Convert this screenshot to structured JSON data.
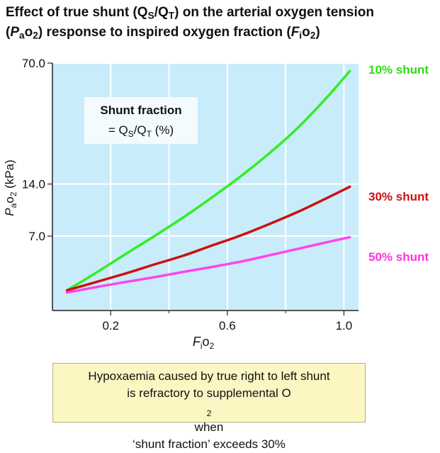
{
  "title": {
    "line1_a": "Effect of true shunt (Q",
    "line1_sub1": "S",
    "line1_b": "/Q",
    "line1_sub2": "T",
    "line1_c": ") on the arterial oxygen tension",
    "line2_a": "(",
    "line2_P": "P",
    "line2_sub_a": "a",
    "line2_b": "o",
    "line2_sub_2": "2",
    "line2_c": ") response to inspired oxygen fraction (",
    "line2_F": "F",
    "line2_sub_i": "i",
    "line2_d": "o",
    "line2_sub_2b": "2",
    "line2_e": ")"
  },
  "legend_box": {
    "heading": "Shunt fraction",
    "eq": "= Q",
    "sub1": "S",
    "slash": "/Q",
    "sub2": "T",
    "unit": " (%)"
  },
  "callout": {
    "line1": "Hypoxaemia caused by true right to left shunt",
    "line2_a": "is refractory to supplemental O",
    "line2_sub": "2",
    "line2_b": " when",
    "line3": "‘shunt fraction’ exceeds 30%"
  },
  "colors": {
    "plot_bg": "#c9ecfa",
    "grid": "#ffffff",
    "shunt10": "#33ee22",
    "shunt30": "#cc1111",
    "shunt50": "#ff44ee",
    "label10": "#2fdc16",
    "label30": "#cc1111",
    "label50": "#ff33dd"
  },
  "chart_data": {
    "type": "line",
    "title": "Effect of true shunt (QS/QT) on the arterial oxygen tension (PaO2) response to inspired oxygen fraction (FiO2)",
    "xlabel": "FiO2",
    "ylabel": "PaO2 (kPa)",
    "xlim": [
      0,
      1.05
    ],
    "x_ticks": [
      0.2,
      0.6,
      1.0
    ],
    "x_tick_labels": [
      "0.2",
      "0.6",
      "1.0"
    ],
    "y_ticks": [
      7.0,
      14.0,
      70.0
    ],
    "y_tick_labels": [
      "7.0",
      "14.0",
      "70.0"
    ],
    "y_scale": "log",
    "ylim": [
      2.6,
      70.0
    ],
    "grid": true,
    "legend": "right",
    "series": [
      {
        "name": "10% shunt",
        "x": [
          0.05,
          0.15,
          0.25,
          0.35,
          0.45,
          0.55,
          0.65,
          0.75,
          0.85,
          0.95,
          1.02
        ],
        "y": [
          3.4,
          4.3,
          5.5,
          7.0,
          9.0,
          11.8,
          15.7,
          21.5,
          30.5,
          46.0,
          63.0
        ]
      },
      {
        "name": "30% shunt",
        "x": [
          0.05,
          0.15,
          0.25,
          0.35,
          0.45,
          0.55,
          0.65,
          0.75,
          0.85,
          0.95,
          1.02
        ],
        "y": [
          3.4,
          3.8,
          4.25,
          4.8,
          5.4,
          6.2,
          7.1,
          8.3,
          9.8,
          11.8,
          13.5
        ]
      },
      {
        "name": "50% shunt",
        "x": [
          0.05,
          0.15,
          0.25,
          0.35,
          0.45,
          0.55,
          0.65,
          0.75,
          0.85,
          0.95,
          1.02
        ],
        "y": [
          3.3,
          3.55,
          3.8,
          4.05,
          4.35,
          4.65,
          5.0,
          5.45,
          5.95,
          6.5,
          6.9
        ]
      }
    ]
  }
}
